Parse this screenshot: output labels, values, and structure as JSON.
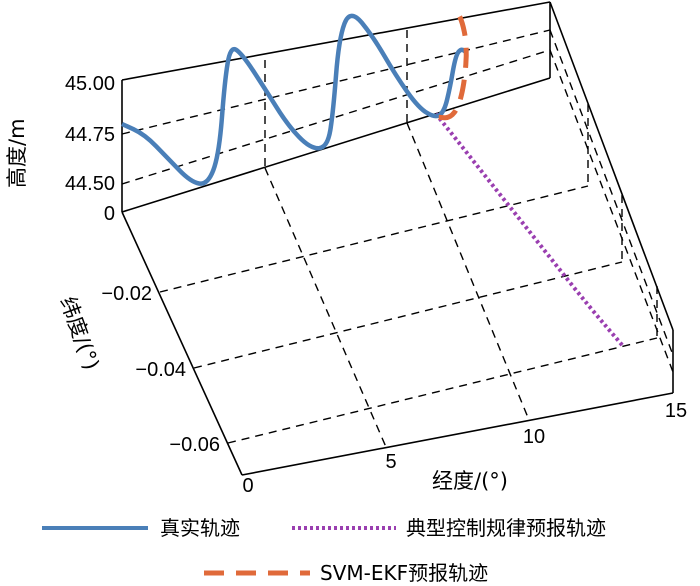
{
  "chart_data": {
    "type": "line",
    "projection": "3d",
    "xlabel": "经度/(°)",
    "ylabel": "纬度/(°)",
    "zlabel": "高度/m",
    "x_ticks": [
      "0",
      "5",
      "10",
      "15"
    ],
    "y_ticks": [
      "0",
      "−0.02",
      "−0.04",
      "−0.06"
    ],
    "z_ticks": [
      "44.50",
      "44.75",
      "45.00"
    ],
    "xlim": [
      0,
      15
    ],
    "ylim": [
      -0.07,
      0
    ],
    "zlim": [
      44.4,
      45.0
    ],
    "grid": true,
    "legend_position": "bottom",
    "series": [
      {
        "name": "真实轨迹",
        "color": "#4a7fb8",
        "style": "solid",
        "x": [
          0.0,
          0.8,
          1.6,
          2.4,
          3.0,
          3.4,
          3.6,
          3.8,
          4.2,
          5.0,
          5.8,
          6.6,
          7.2,
          7.4,
          7.6,
          8.0,
          8.8,
          9.6,
          10.4,
          11.0,
          11.3,
          11.5,
          11.7,
          11.9,
          12.1
        ],
        "y": [
          0.0,
          0.0,
          0.0,
          0.0,
          0.0,
          0.0,
          0.0,
          0.0,
          0.0,
          0.0,
          0.0,
          0.0,
          0.0,
          0.0,
          0.0,
          0.0,
          0.0,
          0.0,
          0.0,
          0.0,
          0.0,
          0.0,
          0.0,
          0.0,
          0.0
        ],
        "z": [
          44.8,
          44.72,
          44.58,
          44.44,
          44.4,
          44.52,
          44.85,
          45.0,
          44.95,
          44.76,
          44.56,
          44.42,
          44.4,
          44.55,
          44.88,
          45.0,
          44.84,
          44.63,
          44.45,
          44.38,
          44.4,
          44.5,
          44.64,
          44.66,
          44.63
        ]
      },
      {
        "name": "典型控制规律预报轨迹",
        "color": "#9a3fb0",
        "style": "dotted",
        "x": [
          11.0,
          11.5,
          12.0,
          12.5,
          13.0,
          13.5
        ],
        "y": [
          0.0,
          -0.014,
          -0.028,
          -0.042,
          -0.056,
          -0.068
        ],
        "z": [
          44.4,
          44.4,
          44.4,
          44.4,
          44.4,
          44.4
        ]
      },
      {
        "name": "SVM-EKF预报轨迹",
        "color": "#e06a3a",
        "style": "dashed",
        "x": [
          11.1,
          11.5,
          11.8,
          12.0,
          12.1,
          11.9,
          11.6
        ],
        "y": [
          0.0,
          0.0,
          0.0,
          0.0,
          0.0,
          0.0,
          0.0
        ],
        "z": [
          44.38,
          44.36,
          44.4,
          44.5,
          44.66,
          44.8,
          44.86
        ]
      }
    ]
  }
}
